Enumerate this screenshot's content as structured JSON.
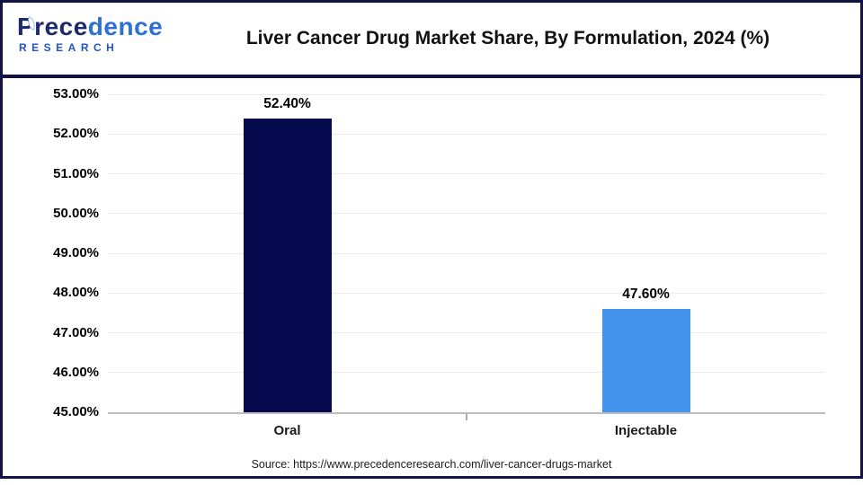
{
  "header": {
    "logo": {
      "part1": "Prece",
      "part2": "dence",
      "line2": "RESEARCH"
    },
    "title": "Liver Cancer Drug Market Share, By Formulation, 2024 (%)"
  },
  "chart_data": {
    "type": "bar",
    "title": "Liver Cancer Drug Market Share, By Formulation, 2024 (%)",
    "categories": [
      "Oral",
      "Injectable"
    ],
    "values": [
      52.4,
      47.6
    ],
    "value_labels": [
      "52.40%",
      "47.60%"
    ],
    "bar_colors": [
      "#05094E",
      "#4493EC"
    ],
    "ylim": [
      45,
      53
    ],
    "ytick_step": 1,
    "ytick_labels": [
      "45.00%",
      "46.00%",
      "47.00%",
      "48.00%",
      "49.00%",
      "50.00%",
      "51.00%",
      "52.00%",
      "53.00%"
    ],
    "grid": true,
    "legend": false,
    "xlabel": "",
    "ylabel": ""
  },
  "footer": {
    "source": "Source: https://www.precedenceresearch.com/liver-cancer-drugs-market"
  },
  "colors": {
    "frame_navy": "#101343",
    "bar_navy": "#05094E",
    "bar_blue": "#4493EC",
    "axis_gray": "#BDBDBD",
    "gridline_gray": "#EBEBEB"
  }
}
